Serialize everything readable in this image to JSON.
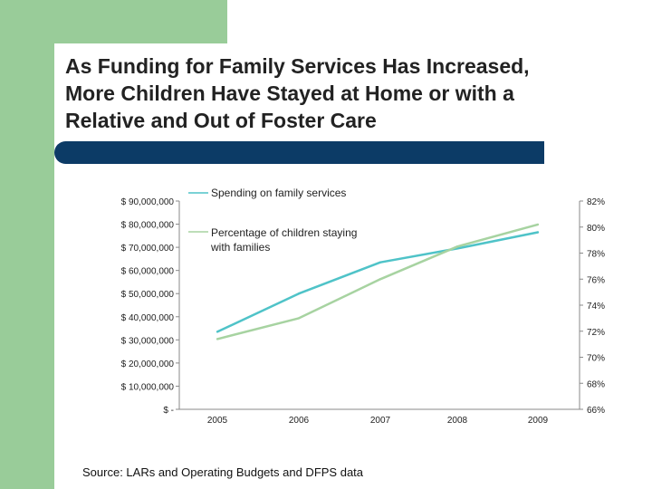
{
  "slide": {
    "title_lines": [
      "As Funding for Family Services Has Increased,",
      "More Children Have Stayed at Home or with a",
      "Relative and Out of Foster Care"
    ],
    "source": "Source:  LARs and Operating Budgets and DFPS data"
  },
  "colors": {
    "green_accent": "#99cc99",
    "navy_bar": "#0c3b66",
    "spending_line": "#4fc3c8",
    "percentage_line": "#a7d3a1"
  },
  "chart_data": {
    "type": "line",
    "categories": [
      "2005",
      "2006",
      "2007",
      "2008",
      "2009"
    ],
    "series": [
      {
        "name": "Spending on family services",
        "axis": "left",
        "color": "#4fc3c8",
        "values": [
          33500000,
          50000000,
          63500000,
          69500000,
          76500000
        ]
      },
      {
        "name": "Percentage of children staying with families",
        "axis": "right",
        "color": "#a7d3a1",
        "values": [
          71.4,
          73.0,
          76.0,
          78.5,
          80.2
        ]
      }
    ],
    "y_left": {
      "min": 0,
      "max": 90000000,
      "ticks": [
        0,
        10000000,
        20000000,
        30000000,
        40000000,
        50000000,
        60000000,
        70000000,
        80000000,
        90000000
      ],
      "tick_labels": [
        "$ -",
        "$ 10,000,000",
        "$ 20,000,000",
        "$ 30,000,000",
        "$ 40,000,000",
        "$ 50,000,000",
        "$ 60,000,000",
        "$ 70,000,000",
        "$ 80,000,000",
        "$ 90,000,000"
      ]
    },
    "y_right": {
      "min": 66,
      "max": 82,
      "ticks": [
        66,
        68,
        70,
        72,
        74,
        76,
        78,
        80,
        82
      ],
      "tick_labels": [
        "66%",
        "68%",
        "70%",
        "72%",
        "74%",
        "76%",
        "78%",
        "80%",
        "82%"
      ]
    },
    "grid": false,
    "legend": "top-left inside plot"
  }
}
